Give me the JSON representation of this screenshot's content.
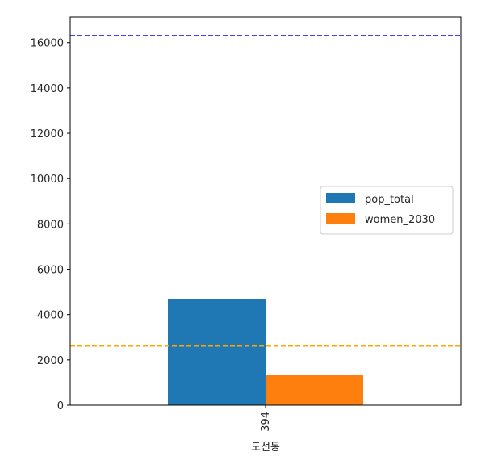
{
  "chart_data": {
    "type": "bar",
    "categories": [
      "394\n도선동"
    ],
    "category_labels": [
      {
        "line1": "394",
        "line2": "도선동"
      }
    ],
    "series": [
      {
        "name": "pop_total",
        "values": [
          4700
        ],
        "color": "#1f77b4"
      },
      {
        "name": "women_2030",
        "values": [
          1330
        ],
        "color": "#ff7f0e"
      }
    ],
    "reference_lines": [
      {
        "value": 16310,
        "color": "#0000ff",
        "style": "dashed"
      },
      {
        "value": 2610,
        "color": "#ffa500",
        "style": "dashed"
      }
    ],
    "y_ticks": [
      0,
      2000,
      4000,
      6000,
      8000,
      10000,
      12000,
      14000,
      16000
    ],
    "ylim": [
      0,
      17130
    ],
    "grid": false,
    "legend_position": "center-right",
    "title": "",
    "xlabel": "",
    "ylabel": ""
  }
}
